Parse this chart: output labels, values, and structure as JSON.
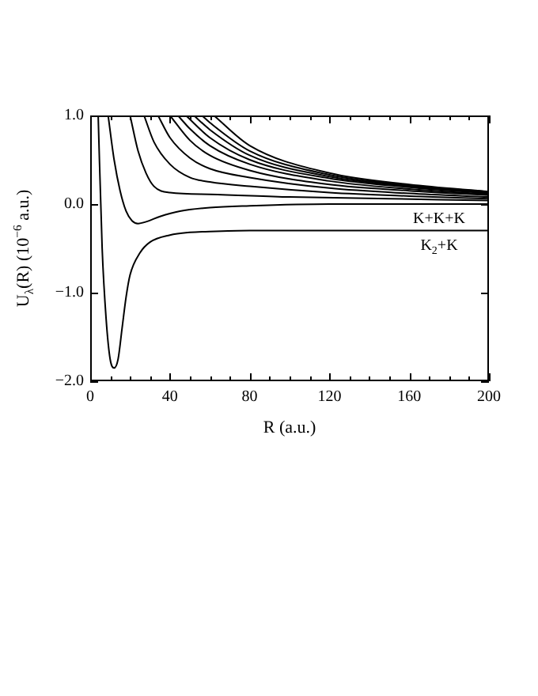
{
  "chart_data": {
    "type": "line",
    "xlabel": "R (a.u.)",
    "ylabel": "U$_{λ}$(R) (10$^{−6}$ a.u.)",
    "xlim": [
      0,
      200
    ],
    "ylim": [
      -2,
      1
    ],
    "xticks": [
      0,
      {
        "value": 10,
        "label": null
      },
      {
        "value": 20,
        "label": null
      },
      {
        "value": 30,
        "label": null
      },
      40,
      {
        "value": 50,
        "label": null
      },
      {
        "value": 60,
        "label": null
      },
      {
        "value": 70,
        "label": null
      },
      80,
      {
        "value": 90,
        "label": null
      },
      {
        "value": 100,
        "label": null
      },
      {
        "value": 110,
        "label": null
      },
      120,
      {
        "value": 130,
        "label": null
      },
      {
        "value": 140,
        "label": null
      },
      {
        "value": 150,
        "label": null
      },
      160,
      {
        "value": 170,
        "label": null
      },
      {
        "value": 180,
        "label": null
      },
      {
        "value": 190,
        "label": null
      },
      200
    ],
    "yticks": [
      {
        "value": -2,
        "label": "−2.0"
      },
      {
        "value": -1,
        "label": "−1.0"
      },
      {
        "value": 0,
        "label": "0.0"
      },
      {
        "value": 1,
        "label": "1.0"
      }
    ],
    "grid": false,
    "legend": false,
    "marker": "none",
    "line_style": "solid",
    "annotations": [
      {
        "text": "K+K+K",
        "x": 175,
        "y": 0
      },
      {
        "text": "K$_{2}$+K",
        "x": 175,
        "y": -0.3
      }
    ],
    "series": [
      {
        "color": "#000000",
        "x": [
          4,
          6,
          8,
          10,
          12,
          14,
          16,
          18,
          20,
          25,
          30,
          40,
          50,
          60,
          80,
          120,
          200
        ],
        "values": [
          1,
          -0.5,
          -1.3,
          -1.75,
          -1.85,
          -1.75,
          -1.4,
          -1.05,
          -0.8,
          -0.55,
          -0.43,
          -0.35,
          -0.32,
          -0.31,
          -0.3,
          -0.3,
          -0.3
        ]
      },
      {
        "color": "#000000",
        "x": [
          9,
          12,
          15,
          18,
          21,
          24,
          28,
          35,
          45,
          60,
          80,
          120,
          200
        ],
        "values": [
          1,
          0.5,
          0.15,
          -0.08,
          -0.19,
          -0.22,
          -0.2,
          -0.14,
          -0.08,
          -0.04,
          -0.02,
          0,
          0
        ]
      },
      {
        "color": "#000000",
        "x": [
          20,
          24,
          28,
          32,
          40,
          60,
          100,
          150,
          200
        ],
        "values": [
          1,
          0.6,
          0.35,
          0.2,
          0.13,
          0.11,
          0.08,
          0.06,
          0.04
        ]
      },
      {
        "color": "#000000",
        "x": [
          27,
          32,
          40,
          50,
          60,
          80,
          120,
          160,
          200
        ],
        "values": [
          1,
          0.7,
          0.45,
          0.3,
          0.25,
          0.2,
          0.13,
          0.09,
          0.06
        ]
      },
      {
        "color": "#000000",
        "x": [
          34,
          40,
          50,
          60,
          80,
          120,
          160,
          200
        ],
        "values": [
          1,
          0.75,
          0.52,
          0.4,
          0.3,
          0.18,
          0.12,
          0.08
        ]
      },
      {
        "color": "#000000",
        "x": [
          40,
          50,
          60,
          80,
          120,
          160,
          200
        ],
        "values": [
          1,
          0.72,
          0.55,
          0.38,
          0.22,
          0.15,
          0.1
        ]
      },
      {
        "color": "#000000",
        "x": [
          44,
          50,
          60,
          80,
          120,
          160,
          200
        ],
        "values": [
          1,
          0.85,
          0.66,
          0.45,
          0.26,
          0.17,
          0.11
        ]
      },
      {
        "color": "#000000",
        "x": [
          48,
          60,
          80,
          120,
          160,
          200
        ],
        "values": [
          1,
          0.75,
          0.5,
          0.29,
          0.19,
          0.12
        ]
      },
      {
        "color": "#000000",
        "x": [
          52,
          60,
          80,
          120,
          160,
          200
        ],
        "values": [
          1,
          0.84,
          0.55,
          0.31,
          0.2,
          0.13
        ]
      },
      {
        "color": "#000000",
        "x": [
          56,
          60,
          80,
          120,
          160,
          200
        ],
        "values": [
          1,
          0.92,
          0.6,
          0.33,
          0.21,
          0.14
        ]
      },
      {
        "color": "#000000",
        "x": [
          62,
          80,
          120,
          160,
          200
        ],
        "values": [
          1,
          0.66,
          0.35,
          0.22,
          0.14
        ]
      }
    ]
  }
}
